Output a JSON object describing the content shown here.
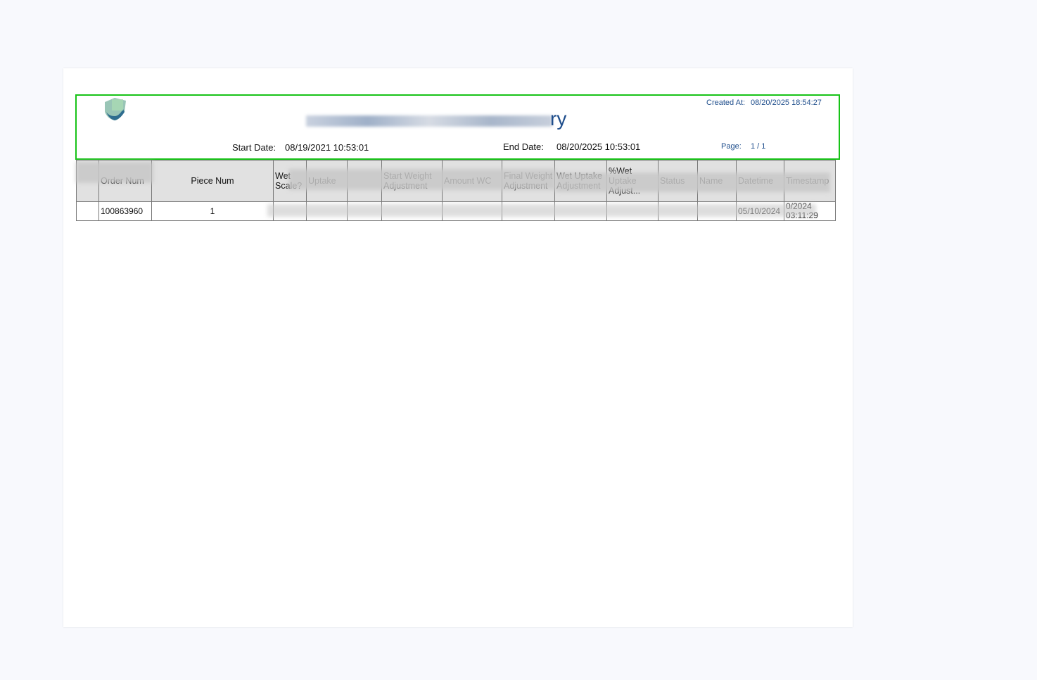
{
  "report": {
    "title_visible_end": "ry",
    "created_at_label": "Created At:",
    "created_at": "08/20/2025 18:54:27",
    "start_date_label": "Start Date:",
    "start_date": "08/19/2021 10:53:01",
    "end_date_label": "End Date:",
    "end_date": "08/20/2025 10:53:01",
    "page_label": "Page:",
    "page": "1 / 1",
    "logo_icon": "shield-leaf-logo",
    "colors": {
      "accent": "#1f4e8c",
      "highlight_border": "#17c317",
      "header_bg": "#e1e1e1"
    }
  },
  "table": {
    "headers": [
      "",
      "Order Num",
      "Piece Num",
      "Wet Scale?",
      "Uptake",
      "",
      "Start Weight Adjustment",
      "Amount WC",
      "Final Weight Adjustment",
      "Wet Uptake Adjustment",
      "%Wet Uptake Adjust...",
      "Status",
      "Name",
      "Datetime",
      "Timestamp"
    ],
    "rows": [
      [
        "",
        "100863960",
        "1",
        "",
        "",
        "",
        "",
        "",
        "",
        "",
        "",
        "",
        "",
        "05/10/2024",
        "0/2024 03:11:29"
      ]
    ]
  }
}
